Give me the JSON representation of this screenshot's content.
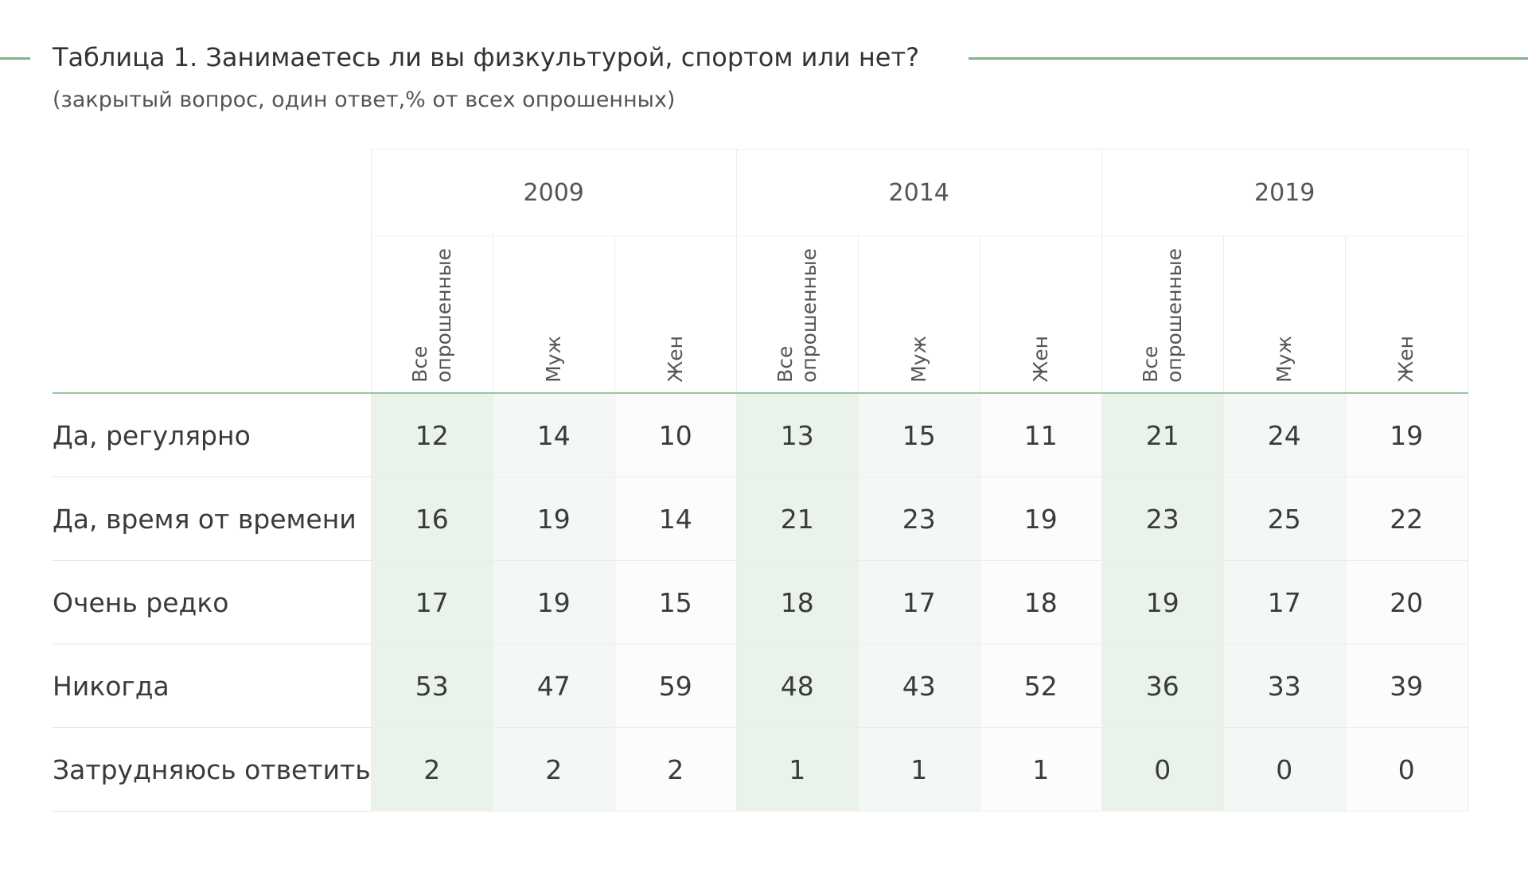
{
  "header": {
    "title": "Таблица 1. Занимаетесь ли вы физкультурой, спортом или нет?",
    "subtitle": "(закрытый вопрос, один ответ,% от всех опрошенных)"
  },
  "colors": {
    "accent_rule": "#86b28a",
    "all_respondents_fill": "#eaf3ea",
    "men_fill": "#f4f8f4",
    "women_fill": "#fbfcfb"
  },
  "table": {
    "years": [
      "2009",
      "2014",
      "2019"
    ],
    "subcolumns": [
      "Все\nопрошенные",
      "Муж",
      "Жен"
    ],
    "rows": [
      {
        "label": "Да, регулярно",
        "values": [
          "12",
          "14",
          "10",
          "13",
          "15",
          "11",
          "21",
          "24",
          "19"
        ]
      },
      {
        "label": "Да, время от времени",
        "values": [
          "16",
          "19",
          "14",
          "21",
          "23",
          "19",
          "23",
          "25",
          "22"
        ]
      },
      {
        "label": "Очень редко",
        "values": [
          "17",
          "19",
          "15",
          "18",
          "17",
          "18",
          "19",
          "17",
          "20"
        ]
      },
      {
        "label": "Никогда",
        "values": [
          "53",
          "47",
          "59",
          "48",
          "43",
          "52",
          "36",
          "33",
          "39"
        ]
      },
      {
        "label": "Затрудняюсь ответить",
        "values": [
          "2",
          "2",
          "2",
          "1",
          "1",
          "1",
          "0",
          "0",
          "0"
        ]
      }
    ]
  }
}
